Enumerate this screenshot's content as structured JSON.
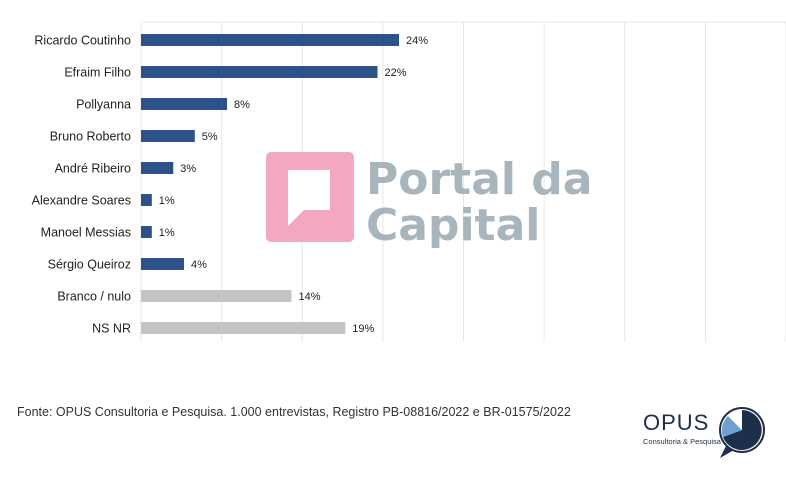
{
  "chart_data": {
    "type": "bar",
    "orientation": "horizontal",
    "categories": [
      "Ricardo Coutinho",
      "Efraim Filho",
      "Pollyanna",
      "Bruno Roberto",
      "André Ribeiro",
      "Alexandre Soares",
      "Manoel Messias",
      "Sérgio Queiroz",
      "Branco / nulo",
      "NS NR"
    ],
    "values": [
      24,
      22,
      8,
      5,
      3,
      1,
      1,
      4,
      14,
      19
    ],
    "value_labels": [
      "24%",
      "22%",
      "8%",
      "5%",
      "3%",
      "1%",
      "1%",
      "4%",
      "14%",
      "19%"
    ],
    "colors": [
      "#2d5288",
      "#2d5288",
      "#2d5288",
      "#2d5288",
      "#2d5288",
      "#2d5288",
      "#2d5288",
      "#2d5288",
      "#c4c4c4",
      "#c4c4c4"
    ],
    "xlim": [
      0,
      60
    ],
    "grid": true,
    "title": "",
    "xlabel": "",
    "ylabel": ""
  },
  "watermark": {
    "line1": "Portal da",
    "line2": "Capital",
    "color": "#a9b5bc",
    "accent": "#f3a8bf"
  },
  "footer": {
    "source": "Fonte: OPUS Consultoria e Pesquisa. 1.000 entrevistas, Registro PB-08816/2022 e BR-01575/2022"
  },
  "logo": {
    "name": "OPUS",
    "tagline": "Consultoria & Pesquisa",
    "color": "#1e2f4a",
    "accent": "#6fa0d0"
  }
}
